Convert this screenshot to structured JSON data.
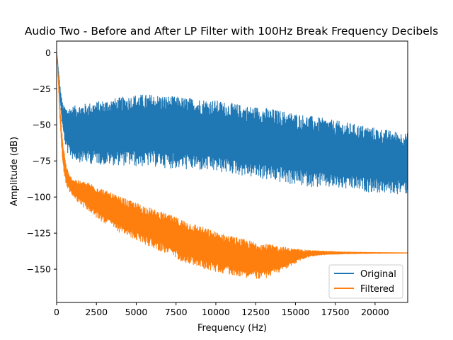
{
  "chart_data": {
    "type": "line",
    "title": "Audio Two - Before and After LP Filter with 100Hz Break Frequency Decibels",
    "xlabel": "Frequency (Hz)",
    "ylabel": "Amplitude (dB)",
    "xlim": [
      0,
      22050
    ],
    "ylim": [
      -173,
      8
    ],
    "x_ticks": [
      0,
      2500,
      5000,
      7500,
      10000,
      12500,
      15000,
      17500,
      20000
    ],
    "x_tick_labels": [
      "0",
      "2500",
      "5000",
      "7500",
      "10000",
      "12500",
      "15000",
      "17500",
      "20000"
    ],
    "y_ticks": [
      0,
      -25,
      -50,
      -75,
      -100,
      -125,
      -150
    ],
    "y_tick_labels": [
      "0",
      "−25",
      "−50",
      "−75",
      "−100",
      "−125",
      "−150"
    ],
    "grid": false,
    "legend_position": "lower-right",
    "series": [
      {
        "name": "Original",
        "color": "#1f77b4",
        "envelope_x": [
          0,
          100,
          200,
          300,
          400,
          600,
          800,
          1000,
          1500,
          2000,
          2500,
          3000,
          4000,
          5000,
          6000,
          7000,
          8000,
          9000,
          10000,
          11000,
          12000,
          13000,
          14000,
          15000,
          16000,
          17000,
          18000,
          19000,
          20000,
          21000,
          22050
        ],
        "upper": [
          0,
          -10,
          -22,
          -30,
          -36,
          -38,
          -38,
          -37,
          -36,
          -35,
          -34,
          -33,
          -31,
          -29,
          -29,
          -30,
          -31,
          -32,
          -33,
          -35,
          -37,
          -38,
          -40,
          -42,
          -44,
          -46,
          -48,
          -50,
          -52,
          -54,
          -56
        ],
        "lower": [
          0,
          -15,
          -30,
          -45,
          -55,
          -68,
          -72,
          -74,
          -76,
          -77,
          -77,
          -78,
          -78,
          -79,
          -79,
          -80,
          -81,
          -82,
          -83,
          -84,
          -86,
          -88,
          -90,
          -92,
          -93,
          -94,
          -95,
          -96,
          -97,
          -98,
          -98
        ]
      },
      {
        "name": "Filtered",
        "color": "#ff7f0e",
        "envelope_x": [
          0,
          100,
          200,
          300,
          400,
          600,
          800,
          1000,
          1500,
          2000,
          2500,
          3000,
          4000,
          5000,
          6000,
          7000,
          8000,
          9000,
          10000,
          11000,
          12000,
          13000,
          14000,
          15000,
          15500,
          16000,
          17000,
          18000,
          19000,
          20000,
          21000,
          22050
        ],
        "upper": [
          0,
          -15,
          -35,
          -50,
          -62,
          -78,
          -85,
          -87,
          -89,
          -90,
          -92,
          -95,
          -100,
          -104,
          -108,
          -112,
          -116,
          -120,
          -124,
          -127,
          -130,
          -132,
          -134,
          -136,
          -136.5,
          -137,
          -137.5,
          -138,
          -138.2,
          -138.4,
          -138.5,
          -138.6
        ],
        "lower": [
          0,
          -20,
          -45,
          -65,
          -80,
          -92,
          -96,
          -100,
          -105,
          -110,
          -115,
          -118,
          -125,
          -130,
          -135,
          -140,
          -145,
          -149,
          -152,
          -154,
          -156,
          -157,
          -152,
          -146,
          -143,
          -141,
          -140,
          -139.5,
          -139.2,
          -139,
          -138.9,
          -138.8
        ]
      }
    ]
  }
}
